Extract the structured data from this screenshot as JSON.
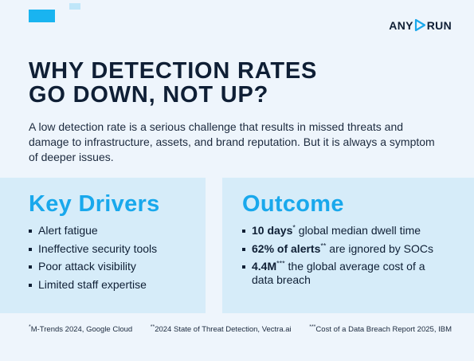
{
  "brand": {
    "left": "ANY",
    "right": "RUN",
    "icon": "play-triangle-icon"
  },
  "title_line1": "WHY DETECTION RATES",
  "title_line2": "GO DOWN, NOT UP?",
  "intro": "A low detection rate is a serious challenge that results in missed threats and damage to infrastructure, assets, and brand reputation. But it is always a symptom of deeper issues.",
  "drivers": {
    "heading": "Key Drivers",
    "items": [
      "Alert fatigue",
      "Ineffective security tools",
      "Poor attack visibility",
      "Limited staff expertise"
    ]
  },
  "outcome": {
    "heading": "Outcome",
    "items": [
      {
        "bold": "10 days",
        "mark": "*",
        "text": " global median dwell time"
      },
      {
        "bold": "62% of alerts",
        "mark": "**",
        "text": " are ignored by SOCs"
      },
      {
        "bold": "4.4M",
        "mark": "***",
        "text": " the global average cost of a data breach"
      }
    ]
  },
  "footnotes": [
    {
      "mark": "*",
      "text": "M-Trends 2024, Google Cloud"
    },
    {
      "mark": "**",
      "text": "2024 State of Threat Detection, Vectra.ai"
    },
    {
      "mark": "***",
      "text": "Cost of a Data Breach Report 2025, IBM"
    }
  ],
  "colors": {
    "accent": "#19a8ec",
    "card": "#d6ecf9",
    "background": "#eef5fc",
    "text": "#0f1f35"
  }
}
